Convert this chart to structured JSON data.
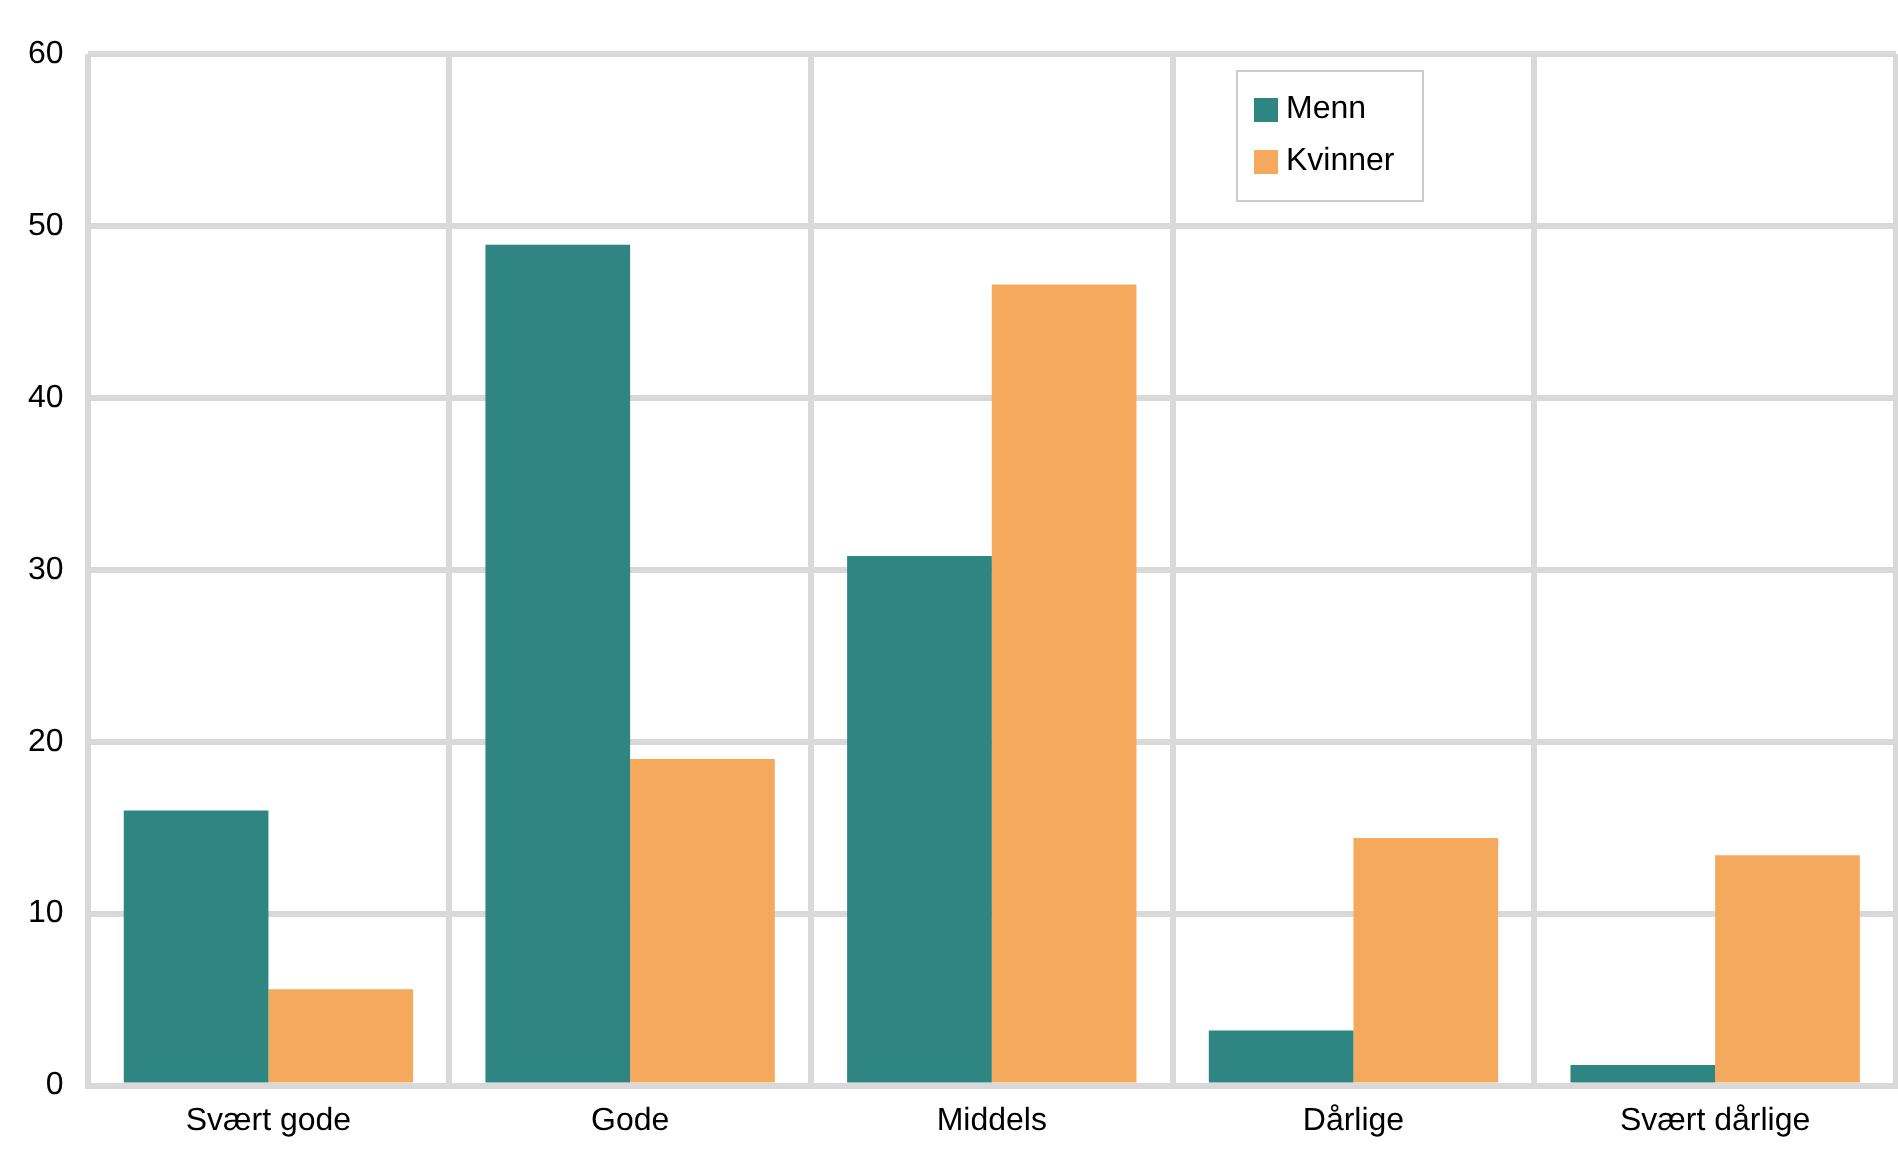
{
  "chart_data": {
    "type": "bar",
    "categories": [
      "Svært gode",
      "Gode",
      "Middels",
      "Dårlige",
      "Svært dårlige"
    ],
    "series": [
      {
        "name": "Menn",
        "color": "#2e8582",
        "values": [
          16,
          48.9,
          30.8,
          3.2,
          1.2
        ]
      },
      {
        "name": "Kvinner",
        "color": "#f5a95d",
        "values": [
          5.6,
          19.0,
          46.6,
          14.4,
          13.4
        ]
      }
    ],
    "ylim": [
      0,
      60
    ],
    "yticks": [
      0,
      10,
      20,
      30,
      40,
      50,
      60
    ],
    "grid": true,
    "legend": "top right"
  }
}
